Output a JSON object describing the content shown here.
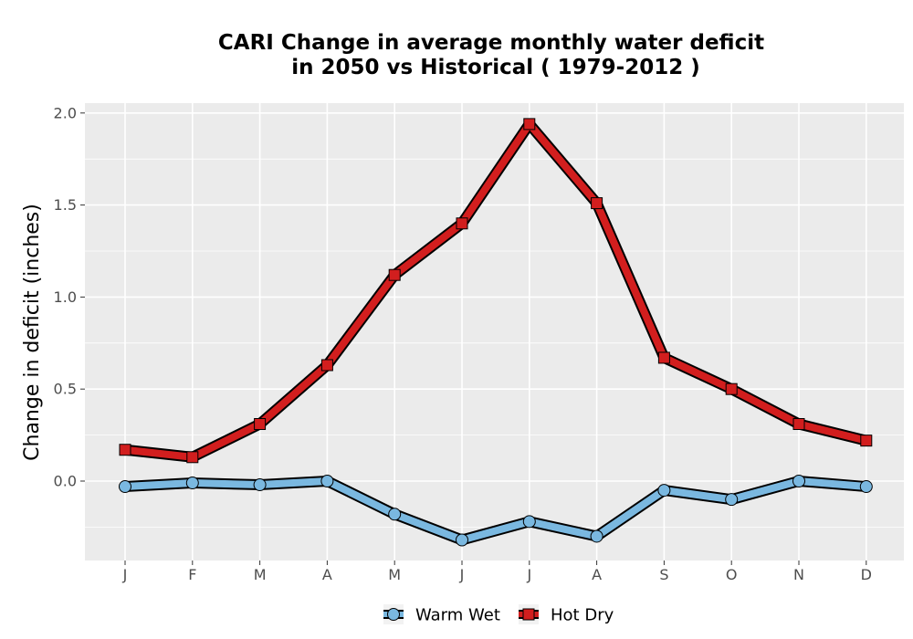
{
  "chart_data": {
    "type": "line",
    "title_lines": [
      "CARI  Change in average monthly water deficit",
      "in 2050 vs Historical ( 1979-2012 )"
    ],
    "xlabel": "",
    "ylabel": "Change in deficit (inches)",
    "categories": [
      "J",
      "F",
      "M",
      "A",
      "M",
      "J",
      "J",
      "A",
      "S",
      "O",
      "N",
      "D"
    ],
    "ylim": [
      -0.43,
      2.05
    ],
    "yticks": [
      0.0,
      0.5,
      1.0,
      1.5,
      2.0
    ],
    "ytick_labels": [
      "0.0",
      "0.5",
      "1.0",
      "1.5",
      "2.0"
    ],
    "grid": true,
    "legend_position": "bottom",
    "series": [
      {
        "name": "Warm Wet",
        "marker": "circle",
        "color": "#7ab8e0",
        "values": [
          -0.03,
          -0.01,
          -0.02,
          0.0,
          -0.18,
          -0.32,
          -0.22,
          -0.3,
          -0.05,
          -0.1,
          0.0,
          -0.03
        ]
      },
      {
        "name": "Hot Dry",
        "marker": "square",
        "color": "#d21e1e",
        "values": [
          0.17,
          0.13,
          0.31,
          0.63,
          1.12,
          1.4,
          1.94,
          1.51,
          0.67,
          0.5,
          0.31,
          0.22
        ]
      }
    ]
  }
}
